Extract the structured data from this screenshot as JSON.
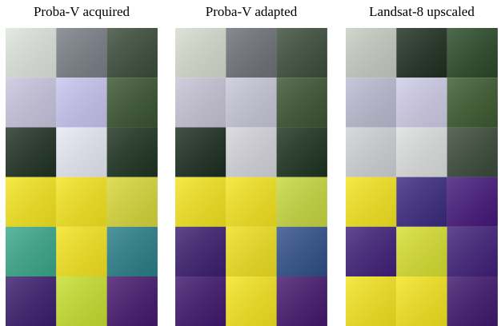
{
  "panels": [
    {
      "title": "Proba-V acquired"
    },
    {
      "title": "Proba-V adapted"
    },
    {
      "title": "Landsat-8 upscaled"
    }
  ]
}
